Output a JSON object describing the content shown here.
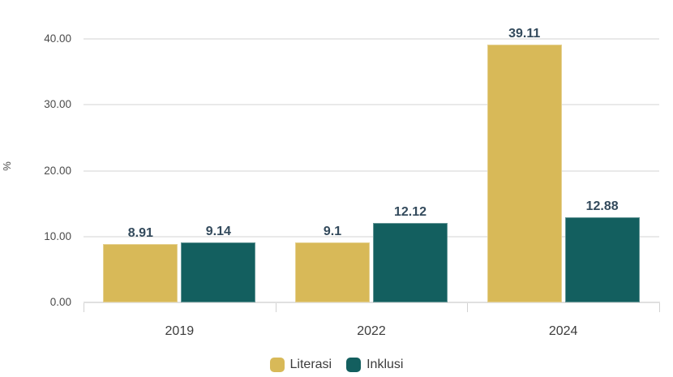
{
  "chart_data": {
    "type": "bar",
    "title": "",
    "ylabel": "%",
    "categories": [
      "2019",
      "2022",
      "2024"
    ],
    "series": [
      {
        "name": "Literasi",
        "color": "#D8B958",
        "values": [
          8.91,
          9.1,
          39.11
        ],
        "labels": [
          "8.91",
          "9.1",
          "39.11"
        ]
      },
      {
        "name": "Inklusi",
        "color": "#135F5F",
        "values": [
          9.14,
          12.12,
          12.88
        ],
        "labels": [
          "9.14",
          "12.12",
          "12.88"
        ]
      }
    ],
    "ylim": [
      0,
      40
    ],
    "yticks": {
      "values": [
        0,
        10,
        20,
        30,
        40
      ],
      "labels": [
        "0.00",
        "10.00",
        "20.00",
        "30.00",
        "40.00"
      ]
    },
    "grid": "horizontal",
    "legend_position": "bottom",
    "colors": {
      "data_label": "#334A5C",
      "axis_label": "#4B4B4B",
      "category_label": "#3C3C3C",
      "gridline": "#E9E9E9",
      "axis_line": "#E0E0E0",
      "background": "#FFFFFF"
    }
  }
}
